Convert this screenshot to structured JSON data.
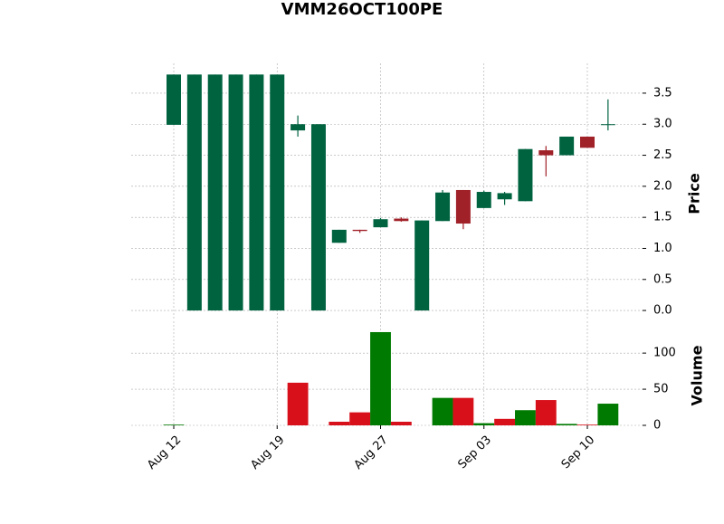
{
  "chart_data": {
    "type": "candlestick",
    "title": "VMM26OCT100PE",
    "categories": [
      "Aug 12",
      null,
      null,
      null,
      null,
      "Aug 19",
      null,
      null,
      null,
      null,
      "Aug 27",
      null,
      null,
      null,
      null,
      "Sep 03",
      null,
      null,
      null,
      null,
      "Sep 10",
      null
    ],
    "open": [
      2.99,
      0,
      0,
      0,
      0,
      0,
      2.9,
      0,
      1.09,
      1.3,
      1.34,
      1.48,
      0,
      1.44,
      1.94,
      1.65,
      1.79,
      1.76,
      2.58,
      2.5,
      2.8,
      3.0
    ],
    "high": [
      3.8,
      3.8,
      3.8,
      3.8,
      3.8,
      3.8,
      3.14,
      3.0,
      1.3,
      1.3,
      1.49,
      1.5,
      1.45,
      1.94,
      1.94,
      1.93,
      1.91,
      2.6,
      2.65,
      2.8,
      2.8,
      3.4
    ],
    "low": [
      2.99,
      0,
      0,
      0,
      0,
      0,
      2.8,
      0,
      1.09,
      1.25,
      1.34,
      1.43,
      0,
      1.44,
      1.31,
      1.65,
      1.7,
      1.76,
      2.16,
      2.5,
      2.62,
      2.9
    ],
    "close": [
      3.8,
      3.8,
      3.8,
      3.8,
      3.8,
      3.8,
      3.0,
      3.0,
      1.3,
      1.28,
      1.47,
      1.44,
      1.45,
      1.9,
      1.4,
      1.91,
      1.89,
      2.6,
      2.5,
      2.8,
      2.62,
      3.0
    ],
    "volume": [
      1,
      0,
      0,
      0,
      0,
      0,
      59,
      0,
      5,
      18,
      129,
      5,
      0,
      38,
      38,
      3,
      9,
      21,
      35,
      2,
      1,
      30
    ],
    "up_color": "#006340",
    "down_color": "#a02128",
    "volume_up_color": "#007a00",
    "volume_down_color": "#d7101a",
    "ylabel": "Price",
    "volume_label": "Volume",
    "ylim": [
      -0.13,
      3.98
    ],
    "yticks": [
      {
        "value": 0,
        "label": "0.0"
      },
      {
        "value": 0.5,
        "label": "0.5"
      },
      {
        "value": 1,
        "label": "1.0"
      },
      {
        "value": 1.5,
        "label": "1.5"
      },
      {
        "value": 2,
        "label": "2.0"
      },
      {
        "value": 2.5,
        "label": "2.5"
      },
      {
        "value": 3,
        "label": "3.0"
      },
      {
        "value": 3.5,
        "label": "3.5"
      }
    ],
    "volume_ylim": [
      0,
      144
    ],
    "volume_yticks": [
      0,
      50,
      100
    ],
    "grid": true
  }
}
